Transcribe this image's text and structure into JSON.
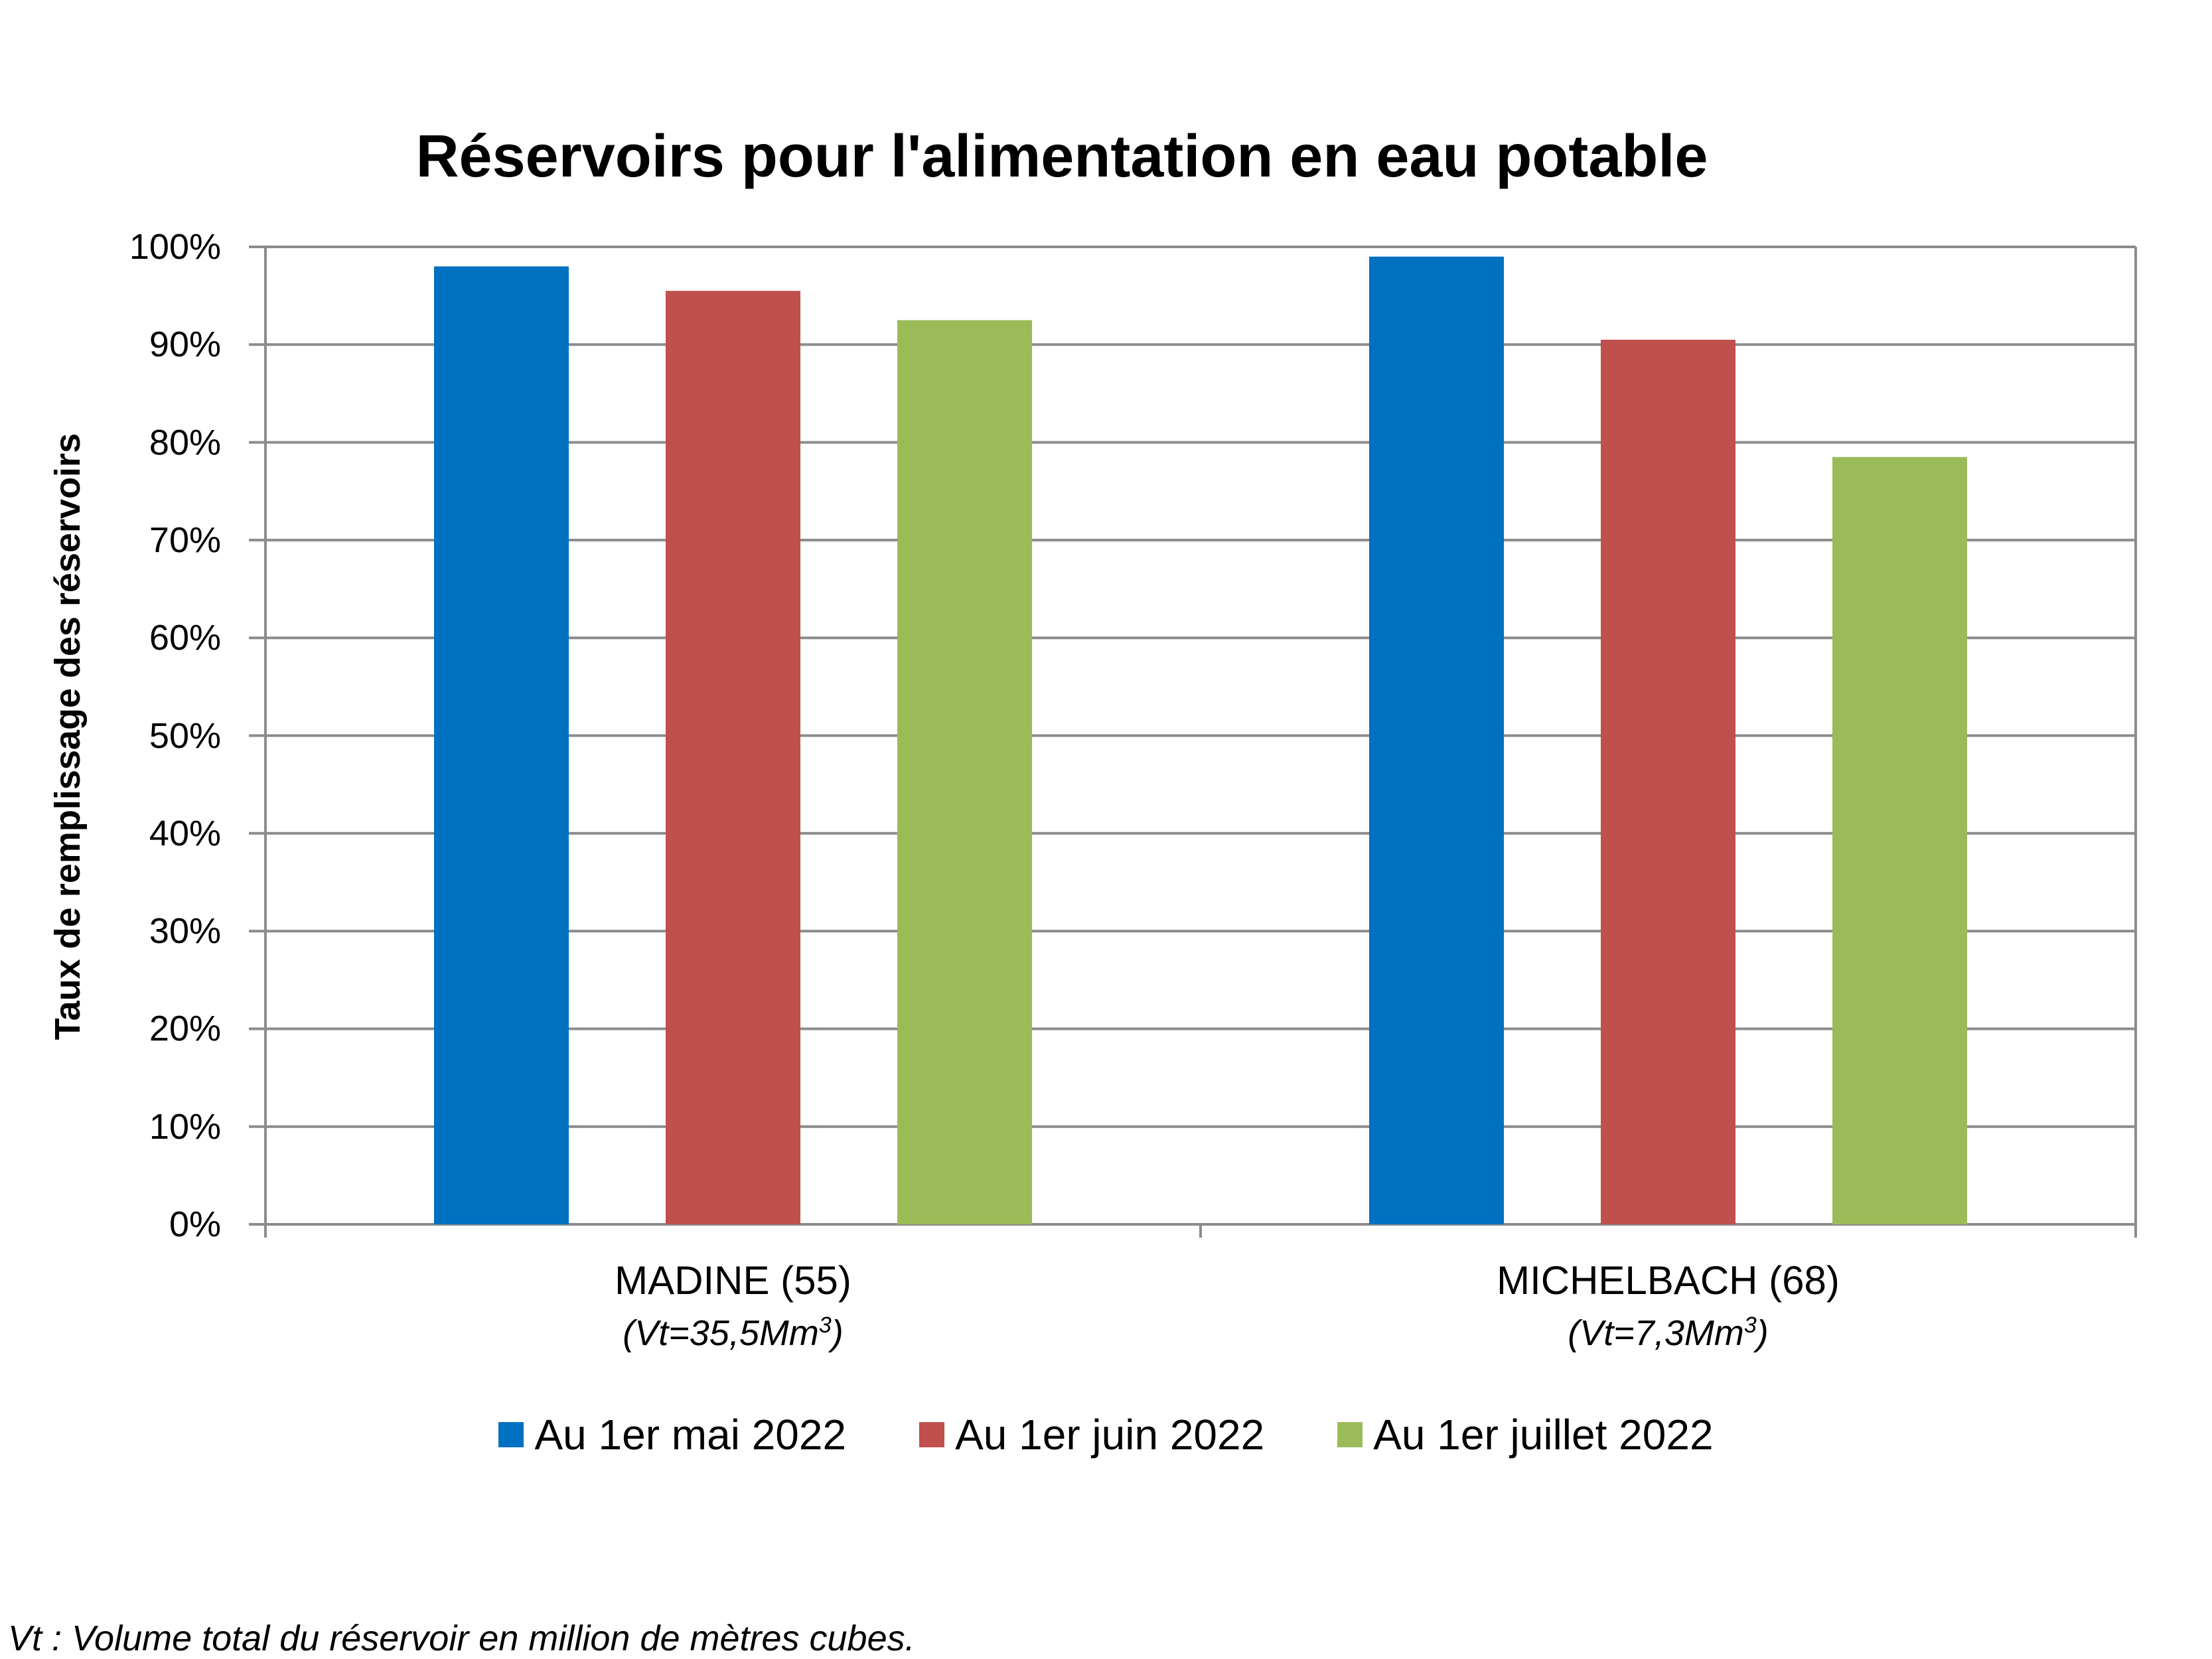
{
  "chart_data": {
    "type": "bar",
    "title": "Réservoirs pour l'alimentation en eau potable",
    "ylabel": "Taux de remplissage des réservoirs",
    "xlabel": "",
    "ylim": [
      0,
      100
    ],
    "yticks": [
      "0%",
      "10%",
      "20%",
      "30%",
      "40%",
      "50%",
      "60%",
      "70%",
      "80%",
      "90%",
      "100%"
    ],
    "grid": true,
    "legend_position": "bottom",
    "categories": [
      "MADINE (55)",
      "MICHELBACH (68)"
    ],
    "category_notes": [
      "(Vt=35,5Mm",
      "(Vt=7,3Mm"
    ],
    "category_note_sup": "3",
    "category_note_close": ")",
    "series": [
      {
        "name": "Au 1er mai 2022",
        "color": "#0070C0",
        "values": [
          98,
          99
        ]
      },
      {
        "name": "Au 1er juin 2022",
        "color": "#C0504D",
        "values": [
          95.5,
          90.5
        ]
      },
      {
        "name": "Au 1er juillet 2022",
        "color": "#9BBB59",
        "values": [
          92.5,
          78.5
        ]
      }
    ]
  },
  "footnote": "Vt : Volume total du réservoir en million de mètres cubes."
}
